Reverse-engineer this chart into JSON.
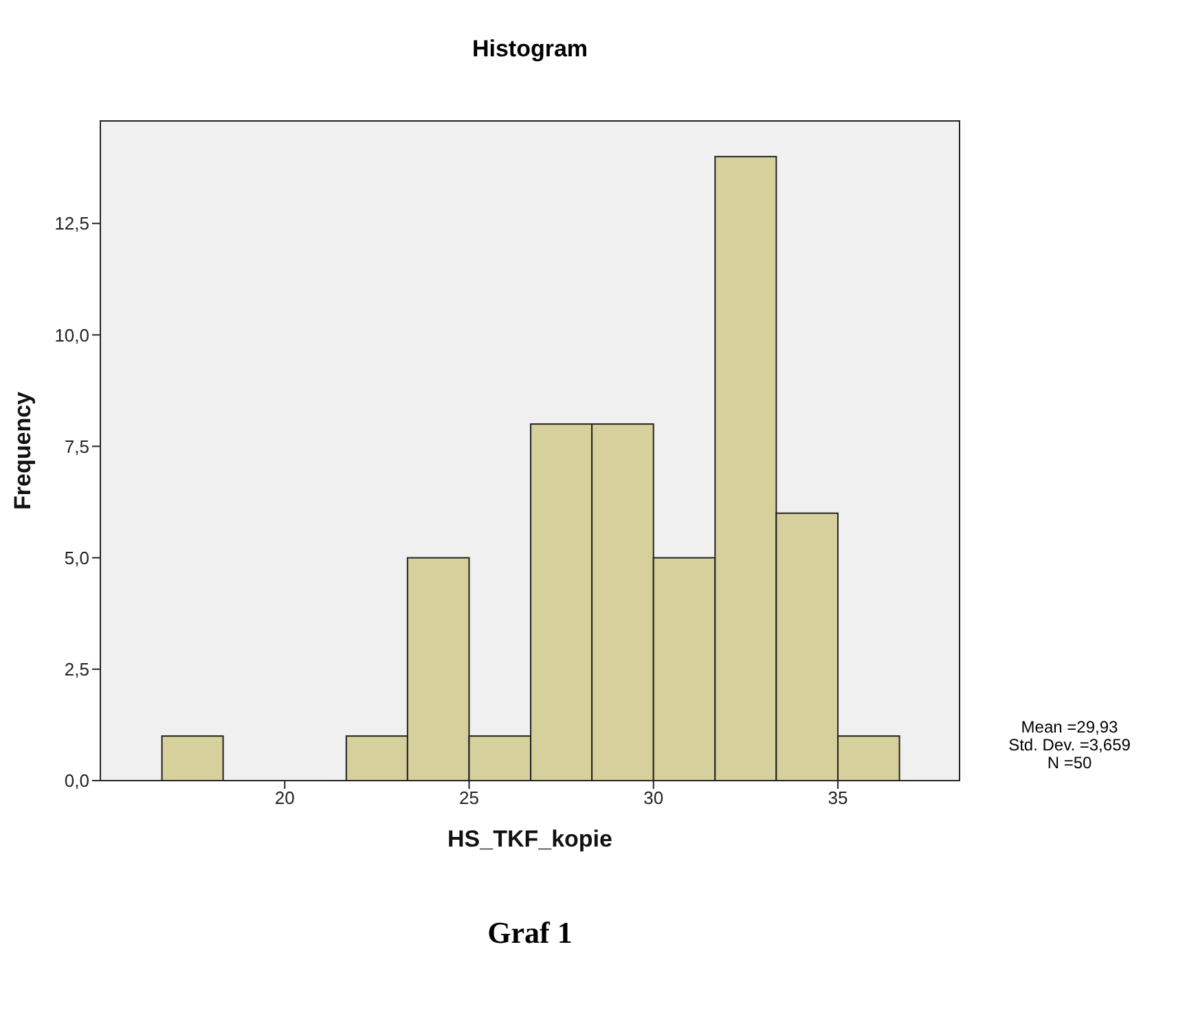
{
  "chart_data": {
    "type": "histogram",
    "title": "Histogram",
    "xlabel": "HS_TKF_kopie",
    "ylabel": "Frequency",
    "bins": [
      16.67,
      18.33,
      21.67,
      23.33,
      25,
      26.67,
      28.33,
      30,
      31.67,
      33.33,
      35,
      36.67
    ],
    "values": [
      1,
      0,
      1,
      5,
      1,
      8,
      8,
      5,
      14,
      6,
      1
    ],
    "color": "#d6d09c",
    "xlim": [
      15,
      38.3
    ],
    "xticks": [
      20,
      25,
      30,
      35
    ],
    "ylim": [
      0,
      14.8
    ],
    "yticks": [
      {
        "value": 0,
        "label": "0,0"
      },
      {
        "value": 2.5,
        "label": "2,5"
      },
      {
        "value": 5,
        "label": "5,0"
      },
      {
        "value": 7.5,
        "label": "7,5"
      },
      {
        "value": 10,
        "label": "10,0"
      },
      {
        "value": 12.5,
        "label": "12,5"
      }
    ],
    "grid": false,
    "annotations": [
      "Mean =29,93",
      "Std. Dev. =3,659",
      "N =50",
      "Graf 1"
    ]
  }
}
